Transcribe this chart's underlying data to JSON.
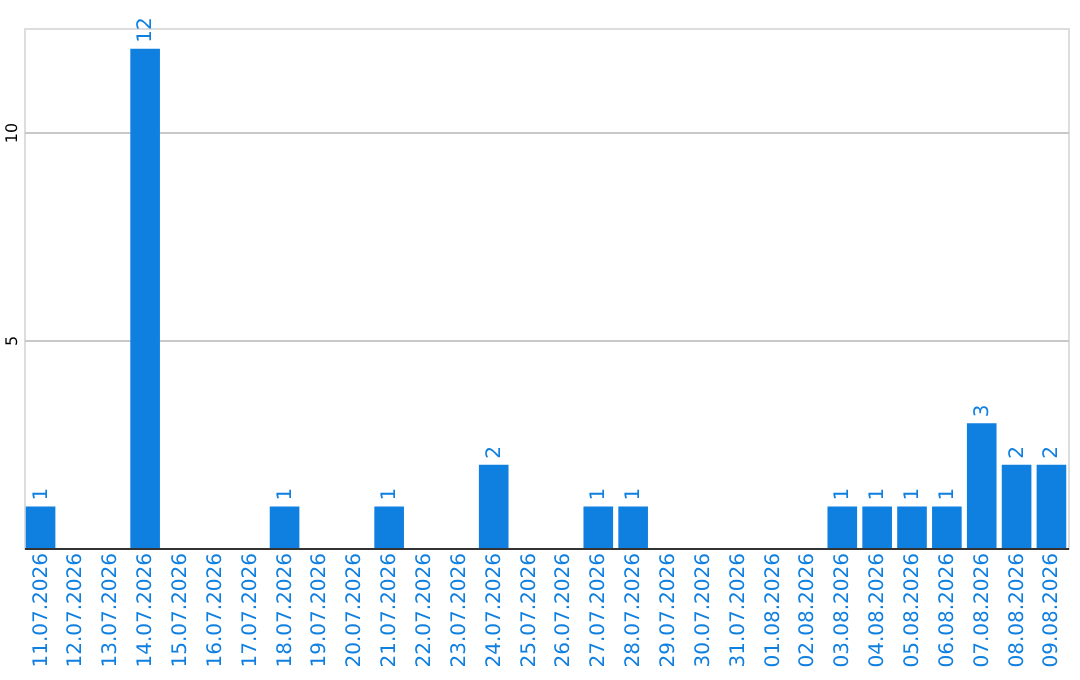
{
  "chart_data": {
    "type": "bar",
    "categories": [
      "11.07.2026",
      "12.07.2026",
      "13.07.2026",
      "14.07.2026",
      "15.07.2026",
      "16.07.2026",
      "17.07.2026",
      "18.07.2026",
      "19.07.2026",
      "20.07.2026",
      "21.07.2026",
      "22.07.2026",
      "23.07.2026",
      "24.07.2026",
      "25.07.2026",
      "26.07.2026",
      "27.07.2026",
      "28.07.2026",
      "29.07.2026",
      "30.07.2026",
      "31.07.2026",
      "01.08.2026",
      "02.08.2026",
      "03.08.2026",
      "04.08.2026",
      "05.08.2026",
      "06.08.2026",
      "07.08.2026",
      "08.08.2026",
      "09.08.2026"
    ],
    "values": [
      1,
      0,
      0,
      12,
      0,
      0,
      0,
      1,
      0,
      0,
      1,
      0,
      0,
      2,
      0,
      0,
      1,
      1,
      0,
      0,
      0,
      0,
      0,
      1,
      1,
      1,
      1,
      3,
      2,
      2
    ],
    "value_labels": [
      "1",
      null,
      null,
      "12",
      null,
      null,
      null,
      "1",
      null,
      null,
      "1",
      null,
      null,
      "2",
      null,
      null,
      "1",
      "1",
      null,
      null,
      null,
      null,
      null,
      "1",
      "1",
      "1",
      "1",
      "3",
      "2",
      "2"
    ],
    "color": "#0f7fe0",
    "ylim": [
      0,
      12.5
    ],
    "yticks": [
      5,
      10
    ],
    "grid": "y"
  }
}
